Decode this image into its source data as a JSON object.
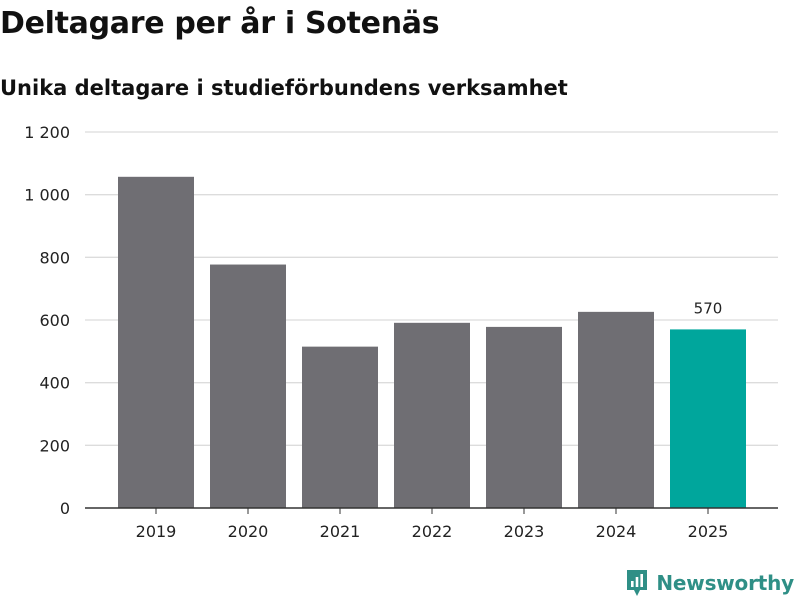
{
  "header": {
    "title": "Deltagare per år i Sotenäs",
    "subtitle": "Unika deltagare i studieförbundens verksamhet"
  },
  "brand": {
    "name": "Newsworthy"
  },
  "colors": {
    "bar": "#6f6e73",
    "highlight": "#00a69c",
    "grid": "#dcdcdc",
    "axis": "#333333",
    "brand": "#2f8f86"
  },
  "chart_data": {
    "type": "bar",
    "title": "Deltagare per år i Sotenäs",
    "subtitle": "Unika deltagare i studieförbundens verksamhet",
    "xlabel": "",
    "ylabel": "",
    "categories": [
      "2019",
      "2020",
      "2021",
      "2022",
      "2023",
      "2024",
      "2025"
    ],
    "values": [
      1057,
      777,
      515,
      591,
      578,
      626,
      570
    ],
    "highlight_index": 6,
    "data_labels": [
      {
        "index": 6,
        "text": "570"
      }
    ],
    "ylim": [
      0,
      1200
    ],
    "yticks": [
      0,
      200,
      400,
      600,
      800,
      1000,
      1200
    ],
    "ytick_labels": [
      "0",
      "200",
      "400",
      "600",
      "800",
      "1 000",
      "1 200"
    ],
    "grid": true,
    "legend": "none"
  }
}
